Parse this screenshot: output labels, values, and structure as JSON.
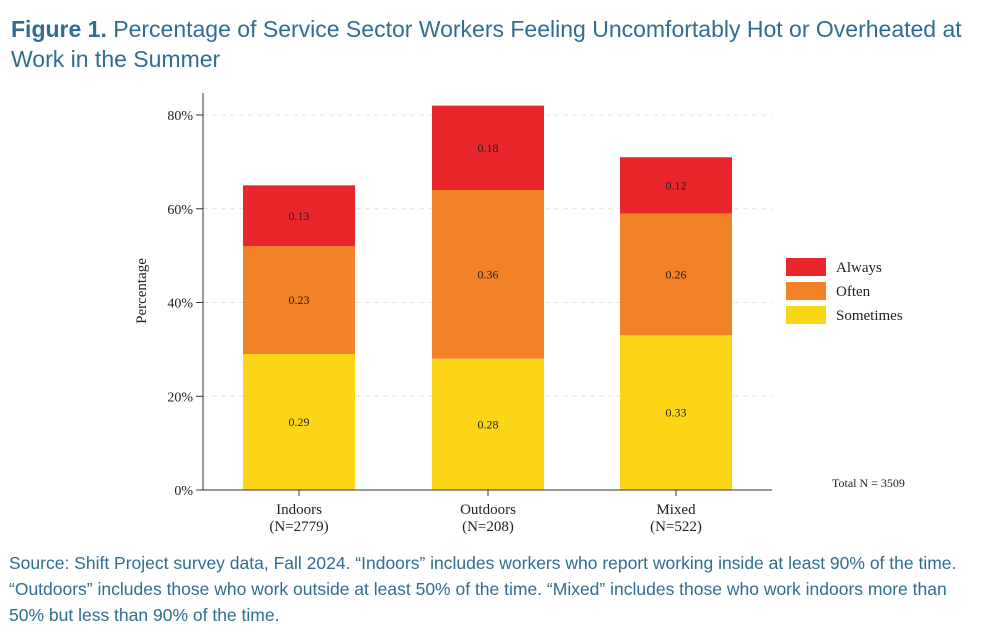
{
  "figure": {
    "label": "Figure 1.",
    "title": "Percentage of Service Sector Workers Feeling Uncomfortably Hot or Overheated at Work in the Summer"
  },
  "chart_data": {
    "type": "bar",
    "stacked": true,
    "categories": [
      "Indoors",
      "Outdoors",
      "Mixed"
    ],
    "category_sublabels": [
      "(N=2779)",
      "(N=208)",
      "(N=522)"
    ],
    "series": [
      {
        "name": "Sometimes",
        "values": [
          0.29,
          0.28,
          0.33
        ],
        "color": "#fcd616"
      },
      {
        "name": "Often",
        "values": [
          0.23,
          0.36,
          0.26
        ],
        "color": "#f28225"
      },
      {
        "name": "Always",
        "values": [
          0.13,
          0.18,
          0.12
        ],
        "color": "#e8262b"
      }
    ],
    "legend_order": [
      "Always",
      "Often",
      "Sometimes"
    ],
    "legend_position": "right",
    "xlabel": "",
    "ylabel": "Percentage",
    "ylim": [
      0,
      0.85
    ],
    "yticks": [
      0,
      0.2,
      0.4,
      0.6,
      0.8
    ],
    "ytick_labels": [
      "0%",
      "20%",
      "40%",
      "60%",
      "80%"
    ],
    "grid": true,
    "annotation": "Total N = 3509"
  },
  "source_note": "Source: Shift Project survey data, Fall 2024. “Indoors” includes workers who report working inside at least 90% of the time. “Outdoors” includes those who work outside at least 50% of the time.  “Mixed” includes those who work indoors more than 50% but less than 90% of the time."
}
